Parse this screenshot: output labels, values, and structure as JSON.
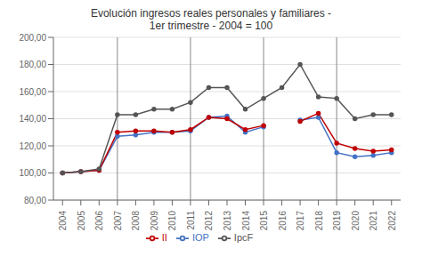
{
  "chart_data": {
    "type": "line",
    "title": "Evolución ingresos reales personales y familiares -\n1er trimestre - 2004 = 100",
    "x": [
      2004,
      2005,
      2006,
      2007,
      2008,
      2009,
      2010,
      2011,
      2012,
      2013,
      2014,
      2015,
      2016,
      2017,
      2018,
      2019,
      2020,
      2021,
      2022
    ],
    "series": [
      {
        "name": "IOP",
        "color": "#4472c4",
        "marker": "circle",
        "values": [
          100,
          101,
          102,
          127,
          128,
          130,
          130,
          131,
          141,
          142,
          130,
          134,
          null,
          139,
          141,
          115,
          112,
          113,
          115
        ]
      },
      {
        "name": "II",
        "color": "#c00000",
        "marker": "circle",
        "values": [
          100,
          101,
          102,
          130,
          131,
          131,
          130,
          132,
          141,
          140,
          132,
          135,
          null,
          138,
          144,
          122,
          118,
          116,
          117
        ]
      },
      {
        "name": "IpcF",
        "color": "#555555",
        "marker": "circle",
        "values": [
          100,
          101,
          103,
          143,
          143,
          147,
          147,
          152,
          163,
          163,
          147,
          155,
          163,
          180,
          156,
          155,
          140,
          143,
          143
        ]
      }
    ],
    "vlines": [
      2007,
      2011,
      2015,
      2019
    ],
    "xlim": [
      2003.5,
      2022.5
    ],
    "xticks": [
      2004,
      2005,
      2006,
      2007,
      2008,
      2009,
      2010,
      2011,
      2012,
      2013,
      2014,
      2015,
      2016,
      2017,
      2018,
      2019,
      2020,
      2021,
      2022
    ],
    "ylim": [
      80,
      200
    ],
    "yticks": [
      {
        "value": 80,
        "label": "80,00"
      },
      {
        "value": 100,
        "label": "100,00"
      },
      {
        "value": 120,
        "label": "120,00"
      },
      {
        "value": 140,
        "label": "140,00"
      },
      {
        "value": 160,
        "label": "160,00"
      },
      {
        "value": 180,
        "label": "180,00"
      },
      {
        "value": 200,
        "label": "200,00"
      }
    ],
    "grid": true,
    "legend": "bottom"
  }
}
